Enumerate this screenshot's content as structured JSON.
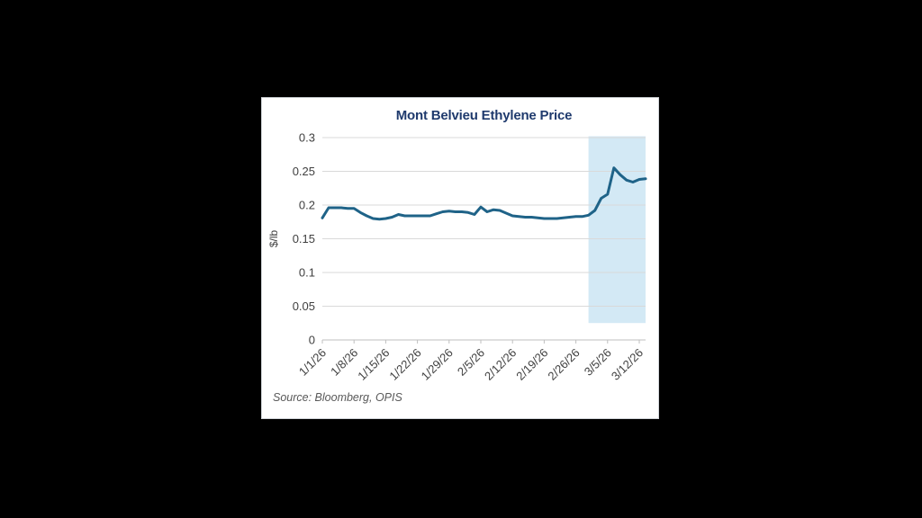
{
  "window": {
    "background_color": "#000000",
    "card_background": "#ffffff",
    "card_border_color": "#d0d4d8"
  },
  "chart_data": {
    "type": "line",
    "title": "Mont Belvieu Ethylene Price",
    "title_color": "#1f3a6d",
    "xlabel": "",
    "ylabel": "$/lb",
    "ylim": [
      0,
      0.3
    ],
    "yticks": [
      0,
      0.05,
      0.1,
      0.15,
      0.2,
      0.25,
      0.3
    ],
    "ytick_labels": [
      "0",
      "0.05",
      "0.1",
      "0.15",
      "0.2",
      "0.25",
      "0.3"
    ],
    "xtick_labels": [
      "1/1/26",
      "1/8/26",
      "1/15/26",
      "1/22/26",
      "1/29/26",
      "2/5/26",
      "2/12/26",
      "2/19/26",
      "2/26/26",
      "3/5/26",
      "3/12/26"
    ],
    "xtick_indices": [
      0,
      5,
      10,
      15,
      20,
      25,
      30,
      35,
      40,
      45,
      50
    ],
    "x": [
      "1/1/26",
      "1/2/26",
      "1/5/26",
      "1/6/26",
      "1/7/26",
      "1/8/26",
      "1/9/26",
      "1/12/26",
      "1/13/26",
      "1/14/26",
      "1/15/26",
      "1/16/26",
      "1/19/26",
      "1/20/26",
      "1/21/26",
      "1/22/26",
      "1/23/26",
      "1/26/26",
      "1/27/26",
      "1/28/26",
      "1/29/26",
      "1/30/26",
      "2/2/26",
      "2/3/26",
      "2/4/26",
      "2/5/26",
      "2/6/26",
      "2/9/26",
      "2/10/26",
      "2/11/26",
      "2/12/26",
      "2/13/26",
      "2/16/26",
      "2/17/26",
      "2/18/26",
      "2/19/26",
      "2/20/26",
      "2/23/26",
      "2/24/26",
      "2/25/26",
      "2/26/26",
      "2/27/26",
      "3/2/26",
      "3/3/26",
      "3/4/26",
      "3/5/26",
      "3/6/26",
      "3/9/26",
      "3/10/26",
      "3/11/26",
      "3/12/26",
      "3/13/26"
    ],
    "series": [
      {
        "name": "Mont Belvieu Ethylene Price",
        "color": "#1f6388",
        "line_width": 3,
        "values": [
          0.181,
          0.196,
          0.196,
          0.196,
          0.195,
          0.195,
          0.189,
          0.184,
          0.18,
          0.179,
          0.18,
          0.182,
          0.186,
          0.184,
          0.184,
          0.184,
          0.184,
          0.184,
          0.187,
          0.19,
          0.191,
          0.19,
          0.19,
          0.189,
          0.186,
          0.197,
          0.19,
          0.193,
          0.192,
          0.188,
          0.184,
          0.183,
          0.182,
          0.182,
          0.181,
          0.18,
          0.18,
          0.18,
          0.181,
          0.182,
          0.183,
          0.183,
          0.185,
          0.192,
          0.21,
          0.216,
          0.255,
          0.245,
          0.237,
          0.234,
          0.238,
          0.239
        ]
      }
    ],
    "highlight_region": {
      "start_x": "3/2/26",
      "start_index": 42,
      "top_value": 0.302,
      "bottom_value": 0.025,
      "color": "#d3e9f5"
    },
    "grid": "horizontal",
    "gridline_color": "#d9d9d9",
    "axis_line_color": "#bfbfbf",
    "tick_label_color": "#404040",
    "legend": "none",
    "source_note": "Source: Bloomberg, OPIS"
  }
}
